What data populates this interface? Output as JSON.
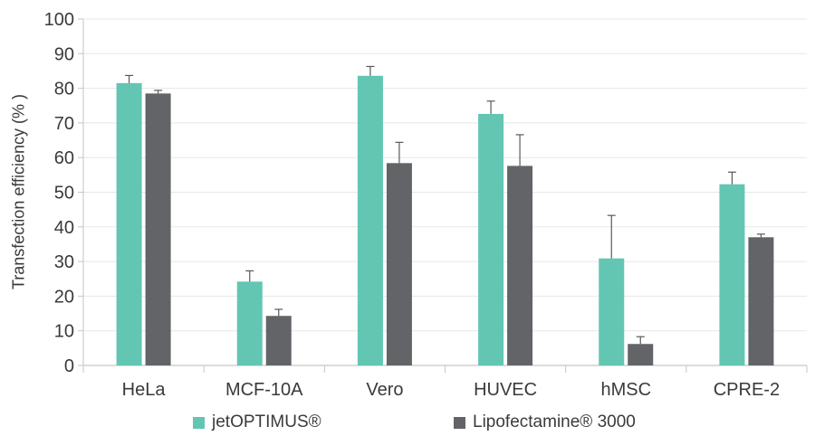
{
  "chart_data": {
    "type": "bar",
    "title": "",
    "xlabel": "",
    "ylabel": "Transfection efficiency (% )",
    "ylim": [
      0,
      100
    ],
    "yticks": [
      0,
      10,
      20,
      30,
      40,
      50,
      60,
      70,
      80,
      90,
      100
    ],
    "grid": true,
    "legend_position": "bottom",
    "categories": [
      "HeLa",
      "MCF-10A",
      "Vero",
      "HUVEC",
      "hMSC",
      "CPRE-2"
    ],
    "series": [
      {
        "name": "jetOPTIMUS®",
        "color": "#62C6B3",
        "values": [
          81.5,
          24.2,
          83.6,
          72.6,
          30.9,
          52.3
        ],
        "errors_plus": [
          2.2,
          3.1,
          2.7,
          3.7,
          12.4,
          3.5
        ]
      },
      {
        "name": "Lipofectamine® 3000",
        "color": "#636468",
        "values": [
          78.5,
          14.3,
          58.4,
          57.6,
          6.2,
          37.0
        ],
        "errors_plus": [
          0.9,
          1.9,
          6.0,
          9.0,
          2.1,
          0.9
        ]
      }
    ],
    "error_bar_color": "#595959",
    "gridline_color": "#e7e7e7",
    "axis_color": "#c6c6c6"
  }
}
